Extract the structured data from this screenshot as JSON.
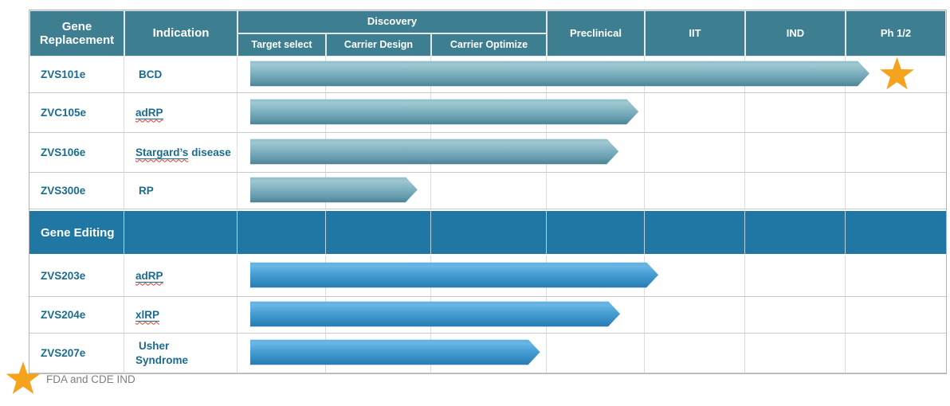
{
  "table": {
    "header": {
      "program_group": "Gene Replacement",
      "indication": "Indication",
      "discovery": "Discovery",
      "discovery_stages": [
        "Target select",
        "Carrier Design",
        "Carrier Optimize"
      ],
      "phases": [
        "Preclinical",
        "IIT",
        "IND",
        "Ph 1/2"
      ]
    },
    "section2_label": "Gene Editing",
    "rows": [
      {
        "program": "ZVS101e",
        "indication_linked": "",
        "indication_plain": "BCD"
      },
      {
        "program": "ZVC105e",
        "indication_linked": "adRP",
        "indication_plain": ""
      },
      {
        "program": "ZVS106e",
        "indication_linked": "Stargard’s",
        "indication_plain": "disease"
      },
      {
        "program": "ZVS300e",
        "indication_linked": "",
        "indication_plain": "RP"
      },
      {
        "program": "ZVS203e",
        "indication_linked": "adRP",
        "indication_plain": ""
      },
      {
        "program": "ZVS204e",
        "indication_linked": "xlRP",
        "indication_plain": ""
      },
      {
        "program": "ZVS207e",
        "indication_linked": "",
        "indication_plain": "Usher Syndrome"
      }
    ]
  },
  "legend": {
    "star_label": "FDA and CDE IND"
  },
  "colors": {
    "header_teal": "#3d7e90",
    "section_blue": "#2177a4",
    "bar_teal": "#6ea8b8",
    "bar_blue": "#3e97cc",
    "label_text": "#1a6b8f",
    "star_orange": "#f5a31c",
    "grid_line": "#dcdcdc",
    "squiggle_red": "#e03a2f"
  },
  "chart_data": {
    "type": "bar",
    "orientation": "horizontal",
    "title": "Gene therapy pipeline progress",
    "x_stages": [
      "Target select",
      "Carrier Design",
      "Carrier Optimize",
      "Preclinical",
      "IIT",
      "IND",
      "Ph 1/2"
    ],
    "stage_boundaries_pct": [
      0,
      12.49,
      27.33,
      43.64,
      57.48,
      71.65,
      85.83,
      100
    ],
    "groups": {
      "Gene Replacement": [
        "ZVS101e",
        "ZVC105e",
        "ZVS106e",
        "ZVS300e"
      ],
      "Gene Editing": [
        "ZVS203e",
        "ZVS204e",
        "ZVS207e"
      ]
    },
    "categories": [
      "ZVS101e",
      "ZVC105e",
      "ZVS106e",
      "ZVS300e",
      "ZVS203e",
      "ZVS204e",
      "ZVS207e"
    ],
    "indications": [
      "BCD",
      "adRP",
      "Stargard’s disease",
      "RP",
      "adRP",
      "xlRP",
      "Usher Syndrome"
    ],
    "phase_reached": [
      "Ph 1/2",
      "Preclinical",
      "Preclinical",
      "Carrier Design",
      "IIT",
      "Preclinical",
      "Carrier Optimize"
    ],
    "bars": [
      {
        "start_pct": 1.8,
        "end_pct": 89.2,
        "palette": "teal"
      },
      {
        "start_pct": 1.8,
        "end_pct": 56.6,
        "palette": "teal"
      },
      {
        "start_pct": 1.8,
        "end_pct": 53.8,
        "palette": "teal"
      },
      {
        "start_pct": 1.8,
        "end_pct": 25.4,
        "palette": "teal"
      },
      {
        "start_pct": 1.8,
        "end_pct": 59.4,
        "palette": "blue"
      },
      {
        "start_pct": 1.8,
        "end_pct": 54.0,
        "palette": "blue"
      },
      {
        "start_pct": 1.8,
        "end_pct": 42.7,
        "palette": "blue"
      }
    ],
    "annotations": [
      {
        "row": "ZVS101e",
        "symbol": "star",
        "meaning": "FDA and CDE IND"
      }
    ],
    "grid": true,
    "legend_position": "bottom-left"
  }
}
